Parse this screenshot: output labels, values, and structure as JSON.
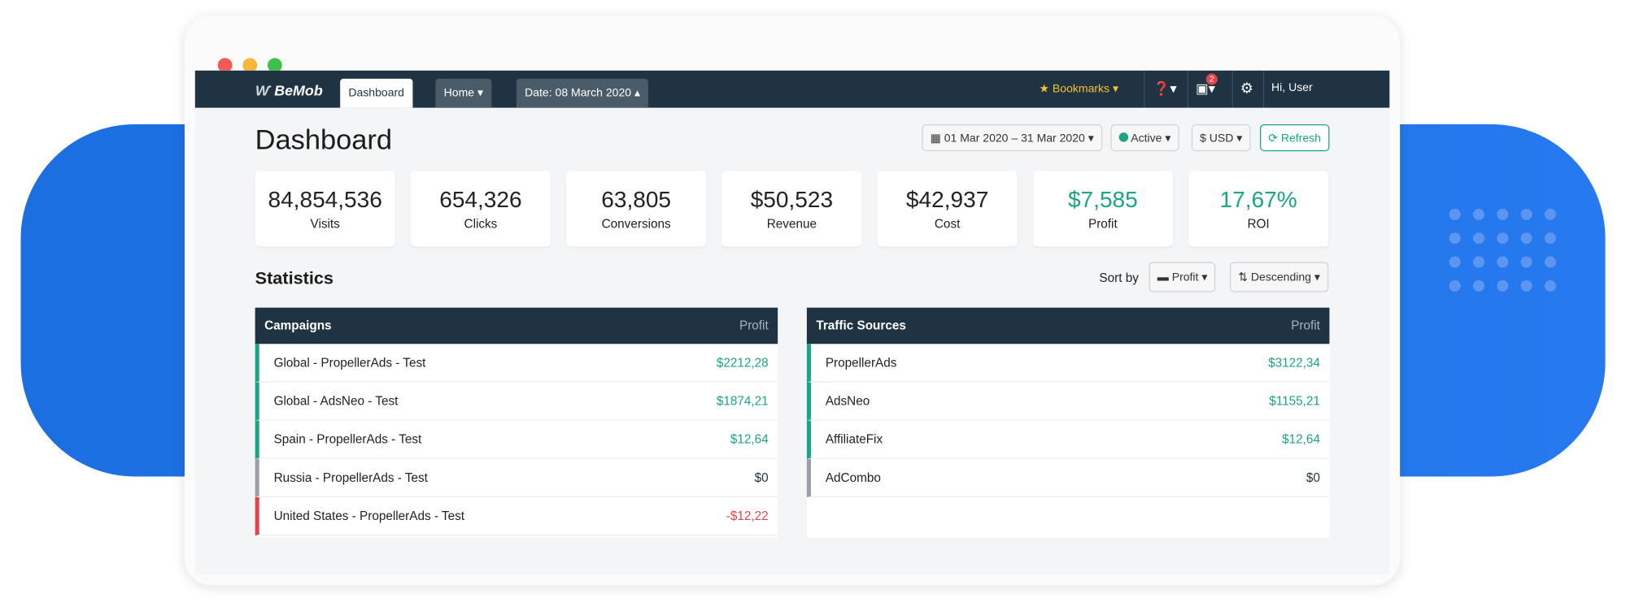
{
  "nav": {
    "brand": "BeMob",
    "tabs": [
      "Dashboard",
      "Home",
      "Date: 08 March 2020"
    ],
    "bookmarks": "Bookmarks",
    "notifications": 2,
    "user": "Hi, User"
  },
  "header": {
    "title": "Dashboard",
    "date_range": "01 Mar 2020 – 31 Mar 2020",
    "status": "Active",
    "currency": "$ USD",
    "refresh": "Refresh"
  },
  "summary": [
    {
      "value": "84,854,536",
      "label": "Visits"
    },
    {
      "value": "654,326",
      "label": "Clicks"
    },
    {
      "value": "63,805",
      "label": "Conversions"
    },
    {
      "value": "$50,523",
      "label": "Revenue"
    },
    {
      "value": "$42,937",
      "label": "Cost"
    },
    {
      "value": "$7,585",
      "label": "Profit",
      "highlight": true
    },
    {
      "value": "17,67%",
      "label": "ROI",
      "highlight": true
    }
  ],
  "statistics": {
    "title": "Statistics",
    "sort_label": "Sort by",
    "sort_field": "Profit",
    "sort_order": "Descending",
    "tables": [
      {
        "title": "Campaigns",
        "column": "Profit",
        "rows": [
          {
            "name": "Global - PropellerAds - Test",
            "profit": "$2212,28",
            "status": "positive"
          },
          {
            "name": "Global - AdsNeo - Test",
            "profit": "$1874,21",
            "status": "positive"
          },
          {
            "name": "Spain - PropellerAds - Test",
            "profit": "$12,64",
            "status": "positive"
          },
          {
            "name": "Russia - PropellerAds - Test",
            "profit": "$0",
            "status": "zero"
          },
          {
            "name": "United States - PropellerAds - Test",
            "profit": "-$12,22",
            "status": "negative"
          }
        ]
      },
      {
        "title": "Traffic Sources",
        "column": "Profit",
        "rows": [
          {
            "name": "PropellerAds",
            "profit": "$3122,34",
            "status": "positive"
          },
          {
            "name": "AdsNeo",
            "profit": "$1155,21",
            "status": "positive"
          },
          {
            "name": "AffiliateFix",
            "profit": "$12,64",
            "status": "positive"
          },
          {
            "name": "AdCombo",
            "profit": "$0",
            "status": "zero"
          }
        ]
      }
    ]
  }
}
